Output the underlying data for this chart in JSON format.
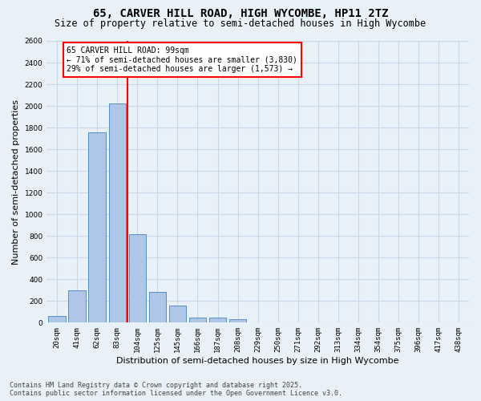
{
  "title_line1": "65, CARVER HILL ROAD, HIGH WYCOMBE, HP11 2TZ",
  "title_line2": "Size of property relative to semi-detached houses in High Wycombe",
  "xlabel": "Distribution of semi-detached houses by size in High Wycombe",
  "ylabel": "Number of semi-detached properties",
  "categories": [
    "20sqm",
    "41sqm",
    "62sqm",
    "83sqm",
    "104sqm",
    "125sqm",
    "145sqm",
    "166sqm",
    "187sqm",
    "208sqm",
    "229sqm",
    "250sqm",
    "271sqm",
    "292sqm",
    "313sqm",
    "334sqm",
    "354sqm",
    "375sqm",
    "396sqm",
    "417sqm",
    "438sqm"
  ],
  "values": [
    60,
    295,
    1755,
    2020,
    820,
    285,
    155,
    50,
    45,
    35,
    0,
    0,
    0,
    0,
    0,
    0,
    0,
    0,
    0,
    0,
    0
  ],
  "bar_color": "#aec6e8",
  "bar_edge_color": "#5a8fc2",
  "vline_color": "red",
  "vline_bar_index": 4,
  "annotation_title": "65 CARVER HILL ROAD: 99sqm",
  "annotation_line1": "← 71% of semi-detached houses are smaller (3,830)",
  "annotation_line2": "29% of semi-detached houses are larger (1,573) →",
  "ylim_max": 2600,
  "yticks": [
    0,
    200,
    400,
    600,
    800,
    1000,
    1200,
    1400,
    1600,
    1800,
    2000,
    2200,
    2400,
    2600
  ],
  "grid_color": "#c8d8e8",
  "background_color": "#e8f0f8",
  "footer_line1": "Contains HM Land Registry data © Crown copyright and database right 2025.",
  "footer_line2": "Contains public sector information licensed under the Open Government Licence v3.0.",
  "title_fontsize": 10,
  "subtitle_fontsize": 8.5,
  "tick_fontsize": 6.5,
  "label_fontsize": 8,
  "annotation_fontsize": 7,
  "footer_fontsize": 6
}
